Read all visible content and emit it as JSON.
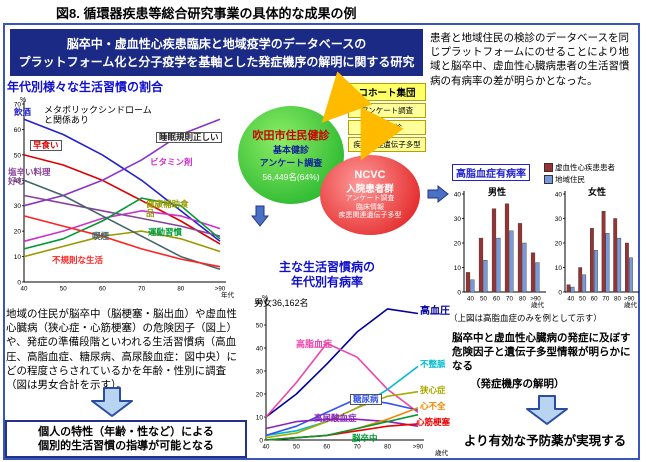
{
  "figure_title": "図8. 循環器疾患等総合研究事業の具体的な成果の例",
  "header": {
    "line1": "脳卒中・虚血性心疾患臨床と地域疫学のデータベースの",
    "line2": "プラットフォーム化と分子疫学を基軸とした発症機序の解明に関する研究"
  },
  "right_top_text": "患者と地域住民の検診のデータベースを同じプラットフォームにのせることにより地域と脳卒中、虚血性心臓病患者の生活習慣病の有病率の差が明らかとなった。",
  "left_chart": {
    "title": "年代別様々な生活習慣の割合",
    "annotation": "メタボリックシンドロームと関係あり"
  },
  "suita": {
    "title": "吹田市住民健診",
    "line1": "基本健診",
    "line2": "アンケート調査",
    "count": "56,449名(64%)"
  },
  "cohort": {
    "title": "コホート集団",
    "items": [
      "アンケート調査",
      "基本健診",
      "疾患関連遺伝子多型"
    ]
  },
  "ncvc": {
    "line1": "NCVC",
    "line2": "入院患者群",
    "items": [
      "アンケート調査",
      "臨床情報",
      "疾患関連遺伝子多型"
    ]
  },
  "center_chart": {
    "title_line1": "主な生活習慣病の",
    "title_line2": "年代別有病率",
    "subtitle": "男女36,162名"
  },
  "right_charts": {
    "title": "高脂血症有病率",
    "caption": "（上図は高脂血症のみを例として示す）"
  },
  "left_bottom_text": "地域の住民が脳卒中（脳梗塞・脳出血）や虚血性心臓病（狭心症・心筋梗塞）の危険因子（図上）や、発症の準備段階といわれる生活習慣病（高血圧、高脂血症、糖尿病、高尿酸血症：図中央）にどの程度さらされているかを年齢・性別に調査（図は男女合計を示す）。",
  "left_conclusion": {
    "line1": "個人の特性（年齢・性など）による",
    "line2": "個別的生活習慣の指導が可能となる"
  },
  "right_bottom_text": "脳卒中と虚血性心臓病の発症に及ぼす危険因子と遺伝子多型情報が明らかになる",
  "right_bottom_note": "（発症機序の解明）",
  "right_conclusion": "より有効な予防薬が実現する",
  "chart_data": [
    {
      "type": "line",
      "name": "lifestyle-by-age",
      "title": "年代別様々な生活習慣の割合",
      "categories": [
        "40",
        "50",
        "60",
        "70",
        "80",
        ">90"
      ],
      "xlabel": "年代",
      "ylabel": "%",
      "ylim": [
        0,
        70
      ],
      "ytick": 10,
      "series": [
        {
          "name": "飲酒",
          "color": "#2222cc",
          "values": [
            64,
            58,
            50,
            40,
            28,
            16
          ]
        },
        {
          "name": "早食い",
          "color": "#dd0000",
          "values": [
            50,
            46,
            40,
            32,
            24,
            15
          ]
        },
        {
          "name": "睡眠規則正しい",
          "color": "#8833cc",
          "values": [
            30,
            34,
            40,
            48,
            58,
            64
          ]
        },
        {
          "name": "ビタミン剤",
          "color": "#cc33cc",
          "values": [
            16,
            20,
            25,
            28,
            26,
            21
          ]
        },
        {
          "name": "塩辛い料理好む",
          "color": "#884499",
          "values": [
            34,
            31,
            28,
            25,
            22,
            18
          ]
        },
        {
          "name": "健康補助食品",
          "color": "#999900",
          "values": [
            10,
            14,
            18,
            20,
            17,
            12
          ]
        },
        {
          "name": "運動習慣",
          "color": "#009933",
          "values": [
            13,
            17,
            24,
            33,
            30,
            17
          ]
        },
        {
          "name": "喫煙",
          "color": "#446666",
          "values": [
            40,
            34,
            26,
            18,
            10,
            5
          ]
        },
        {
          "name": "不規則な生活",
          "color": "#ff2222",
          "values": [
            26,
            22,
            18,
            13,
            9,
            6
          ]
        }
      ]
    },
    {
      "type": "line",
      "name": "disease-prevalence-by-age",
      "title": "主な生活習慣病の年代別有病率",
      "subtitle": "男女36,162名",
      "categories": [
        "40",
        "50",
        "60",
        "70",
        "80",
        ">90"
      ],
      "xlabel": "歳代",
      "ylabel": "%",
      "ylim": [
        0,
        60
      ],
      "ytick": 10,
      "series": [
        {
          "name": "高血圧",
          "color": "#000099",
          "values": [
            10,
            20,
            33,
            47,
            57,
            55
          ]
        },
        {
          "name": "高脂血症",
          "color": "#ee44aa",
          "values": [
            10,
            25,
            42,
            36,
            22,
            12
          ]
        },
        {
          "name": "不整脈",
          "color": "#00bbcc",
          "values": [
            2,
            4,
            8,
            14,
            22,
            32
          ]
        },
        {
          "name": "狭心症",
          "color": "#aaaa00",
          "values": [
            1,
            3,
            8,
            14,
            19,
            21
          ]
        },
        {
          "name": "糖尿病",
          "color": "#3355ee",
          "values": [
            2,
            6,
            12,
            18,
            16,
            13
          ]
        },
        {
          "name": "高尿酸血症",
          "color": "#8822bb",
          "values": [
            5,
            8,
            9,
            9,
            8,
            6
          ]
        },
        {
          "name": "心不全",
          "color": "#ee8800",
          "values": [
            0,
            1,
            2,
            5,
            9,
            14
          ]
        },
        {
          "name": "心筋梗塞",
          "color": "#ee0000",
          "values": [
            0,
            1,
            2,
            4,
            6,
            7
          ]
        },
        {
          "name": "脳卒中",
          "color": "#009933",
          "values": [
            0,
            1,
            2,
            5,
            8,
            11
          ]
        }
      ]
    },
    {
      "type": "bar",
      "name": "hyperlipidemia-prevalence-male",
      "title": "男性",
      "categories": [
        "40",
        "50",
        "60",
        "70",
        "80",
        ">90"
      ],
      "xlabel": "歳代",
      "ylim": [
        0,
        40
      ],
      "ytick": 10,
      "series": [
        {
          "name": "虚血性心疾患患者",
          "color": "#993333",
          "values": [
            8,
            22,
            34,
            36,
            28,
            16
          ]
        },
        {
          "name": "地域住民",
          "color": "#7799dd",
          "values": [
            5,
            13,
            22,
            25,
            20,
            12
          ]
        }
      ]
    },
    {
      "type": "bar",
      "name": "hyperlipidemia-prevalence-female",
      "title": "女性",
      "categories": [
        "40",
        "50",
        "60",
        "70",
        "80",
        ">90"
      ],
      "xlabel": "歳代",
      "ylim": [
        0,
        40
      ],
      "ytick": 10,
      "series": [
        {
          "name": "虚血性心疾患患者",
          "color": "#993333",
          "values": [
            3,
            10,
            26,
            33,
            30,
            20
          ]
        },
        {
          "name": "地域住民",
          "color": "#7799dd",
          "values": [
            2,
            7,
            17,
            24,
            22,
            14
          ]
        }
      ]
    }
  ]
}
